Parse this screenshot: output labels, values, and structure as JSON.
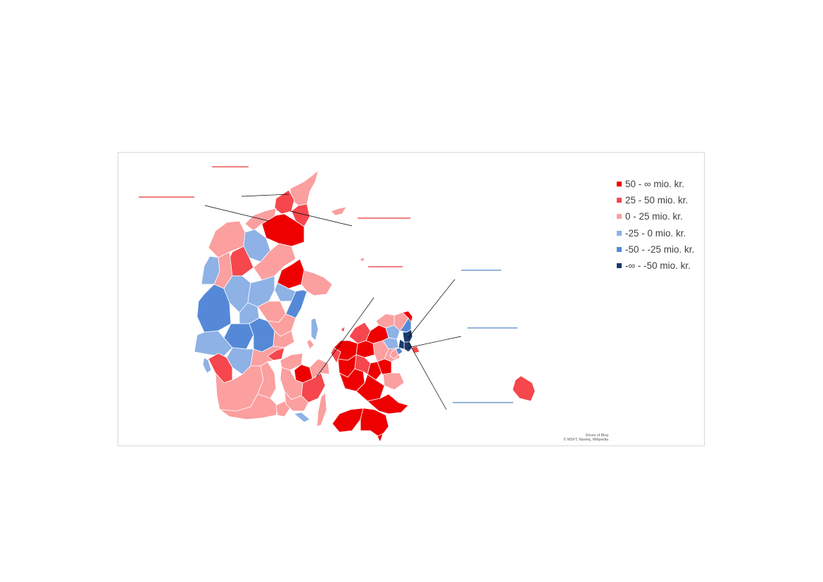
{
  "legend": {
    "items": [
      {
        "label": "50 - ∞ mio. kr.",
        "color": "#ee0000"
      },
      {
        "label": "25 - 50 mio. kr.",
        "color": "#f5474d"
      },
      {
        "label": "0 - 25 mio. kr.",
        "color": "#fb9f9f"
      },
      {
        "label": "-25 - 0 mio. kr.",
        "color": "#8eb1e6"
      },
      {
        "label": "-50 - -25 mio. kr.",
        "color": "#5589d7"
      },
      {
        "label": "-∞ - -50 mio. kr.",
        "color": "#1a3a6b"
      }
    ]
  },
  "credit": {
    "line1": "Drives of Bing",
    "line2": "© MSFT, Navteq, Wikipedia"
  },
  "colors": {
    "border": "#d9d9d9",
    "region_outline": "#ffffff",
    "callout_red": "#e00000",
    "callout_blue": "#2a6ab8",
    "leader_line": "#000000"
  }
}
